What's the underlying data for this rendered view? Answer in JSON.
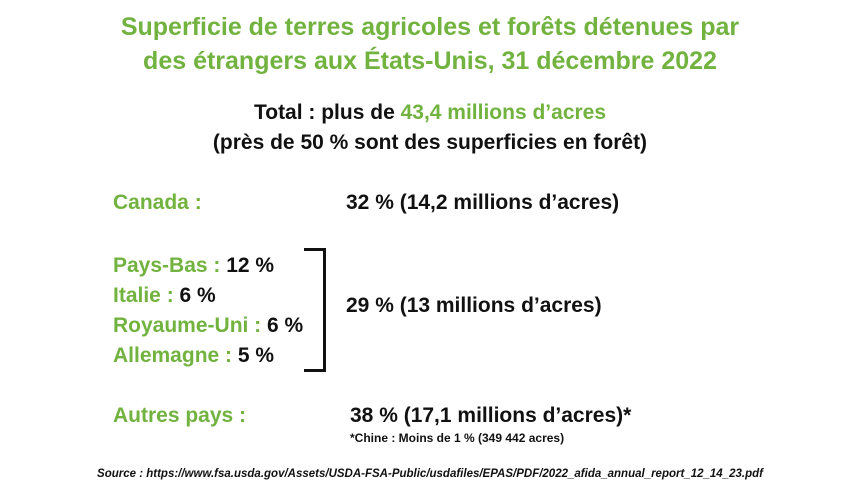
{
  "title": {
    "line1": "Superficie de terres agricoles et forêts détenues par",
    "line2": "des étrangers aux États-Unis, 31 décembre 2022"
  },
  "total": {
    "prefix": "Total : plus de ",
    "value": "43,4 millions d’acres",
    "sub": "(près de 50 % sont des superficies en forêt)"
  },
  "canada": {
    "label": "Canada :",
    "value": "32 % (14,2 millions d’acres)"
  },
  "group": {
    "items": [
      {
        "label": "Pays-Bas : ",
        "value": "12 %"
      },
      {
        "label": "Italie : ",
        "value": "6 %"
      },
      {
        "label": "Royaume-Uni : ",
        "value": "6 %"
      },
      {
        "label": "Allemagne : ",
        "value": "5 %"
      }
    ],
    "total": "29 % (13 millions d’acres)"
  },
  "others": {
    "label": "Autres pays :",
    "value": "38 % (17,1 millions d’acres)*",
    "note": "*Chine : Moins de 1 % (349 442 acres)"
  },
  "source": "Source : https://www.fsa.usda.gov/Assets/USDA-FSA-Public/usdafiles/EPAS/PDF/2022_afida_annual_report_12_14_23.pdf",
  "colors": {
    "accent": "#72b33f",
    "text": "#111111"
  }
}
